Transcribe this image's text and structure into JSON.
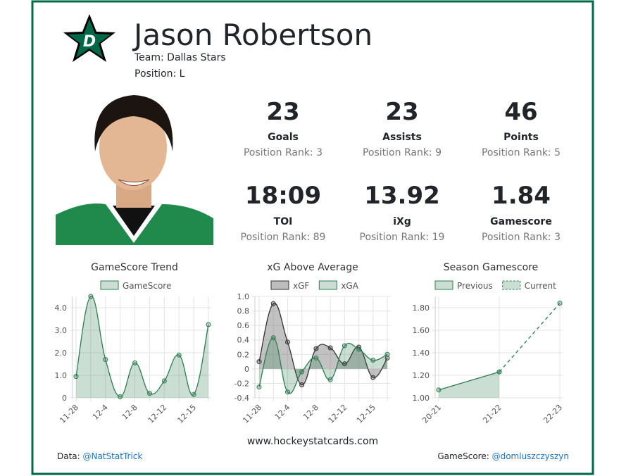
{
  "header": {
    "name": "Jason Robertson",
    "team": "Team: Dallas Stars",
    "position": "Position: L"
  },
  "stats": [
    {
      "value": 23,
      "label": "Goals",
      "rank": "Position Rank: 3"
    },
    {
      "value": 23,
      "label": "Assists",
      "rank": "Position Rank: 9"
    },
    {
      "value": 46,
      "label": "Points",
      "rank": "Position Rank: 5"
    },
    {
      "value": "18:09",
      "label": "TOI",
      "rank": "Position Rank: 89"
    },
    {
      "value": 13.92,
      "label": "iXg",
      "rank": "Position Rank: 19"
    },
    {
      "value": 1.84,
      "label": "Gamescore",
      "rank": "Position Rank: 3"
    }
  ],
  "chart_data": [
    {
      "type": "line",
      "title": "GameScore Trend",
      "smooth": true,
      "grid": true,
      "categories": [
        "11-28",
        null,
        "12-4",
        null,
        "12-8",
        null,
        "12-12",
        null,
        "12-15",
        null
      ],
      "series": [
        {
          "name": "GameScore",
          "color": "#2e7d52",
          "fill": true,
          "values": [
            0.95,
            4.5,
            1.7,
            0.05,
            1.55,
            0.2,
            0.75,
            1.9,
            0.15,
            3.25
          ]
        }
      ],
      "ylim": [
        0,
        4.5
      ],
      "yticks": [
        0,
        {
          "value": 1,
          "label": "1.0"
        },
        {
          "value": 2,
          "label": "2.0"
        },
        {
          "value": 3,
          "label": "3.0"
        },
        {
          "value": 4,
          "label": "4.0"
        }
      ]
    },
    {
      "type": "line",
      "title": "xG Above Average",
      "smooth": true,
      "grid": true,
      "categories": [
        "11-28",
        null,
        "12-4",
        null,
        "12-8",
        null,
        "12-12",
        null,
        "12-15",
        null
      ],
      "series": [
        {
          "name": "xGF",
          "color": "#333333",
          "fill": true,
          "values": [
            0.1,
            0.9,
            0.37,
            -0.22,
            0.28,
            0.29,
            0.07,
            0.3,
            -0.12,
            0.15
          ]
        },
        {
          "name": "xGA",
          "color": "#2e7d52",
          "fill": true,
          "values": [
            -0.25,
            0.43,
            -0.32,
            -0.04,
            0.15,
            -0.15,
            0.32,
            0.27,
            0.12,
            0.2
          ]
        }
      ],
      "ylim": [
        -0.4,
        1.0
      ],
      "yticks": [
        -0.4,
        -0.2,
        0,
        0.2,
        0.4,
        0.6,
        0.8,
        {
          "value": 1,
          "label": "1.0"
        }
      ]
    },
    {
      "type": "line",
      "title": "Season Gamescore",
      "smooth": false,
      "grid": true,
      "categories": [
        "20-21",
        "21-22",
        "22-23"
      ],
      "series": [
        {
          "name": "Previous",
          "color": "#2e7d52",
          "fill": true,
          "values": [
            1.07,
            1.23,
            null
          ]
        },
        {
          "name": "Current",
          "color": "#2e7d52",
          "fill": false,
          "dashed": true,
          "values": [
            null,
            1.23,
            1.84
          ]
        }
      ],
      "ylim": [
        1.0,
        1.9
      ],
      "yticks": [
        {
          "value": 1,
          "label": "1.00"
        },
        {
          "value": 1.2,
          "label": "1.20"
        },
        {
          "value": 1.4,
          "label": "1.40"
        },
        {
          "value": 1.6,
          "label": "1.60"
        },
        {
          "value": 1.8,
          "label": "1.80"
        }
      ]
    }
  ],
  "footer": {
    "data_label": "Data:",
    "data_handle": "@NatStatTrick",
    "site": "www.hockeystatcards.com",
    "gamescore_label": "GameScore:",
    "gamescore_handle": "@domluszczyszyn"
  }
}
